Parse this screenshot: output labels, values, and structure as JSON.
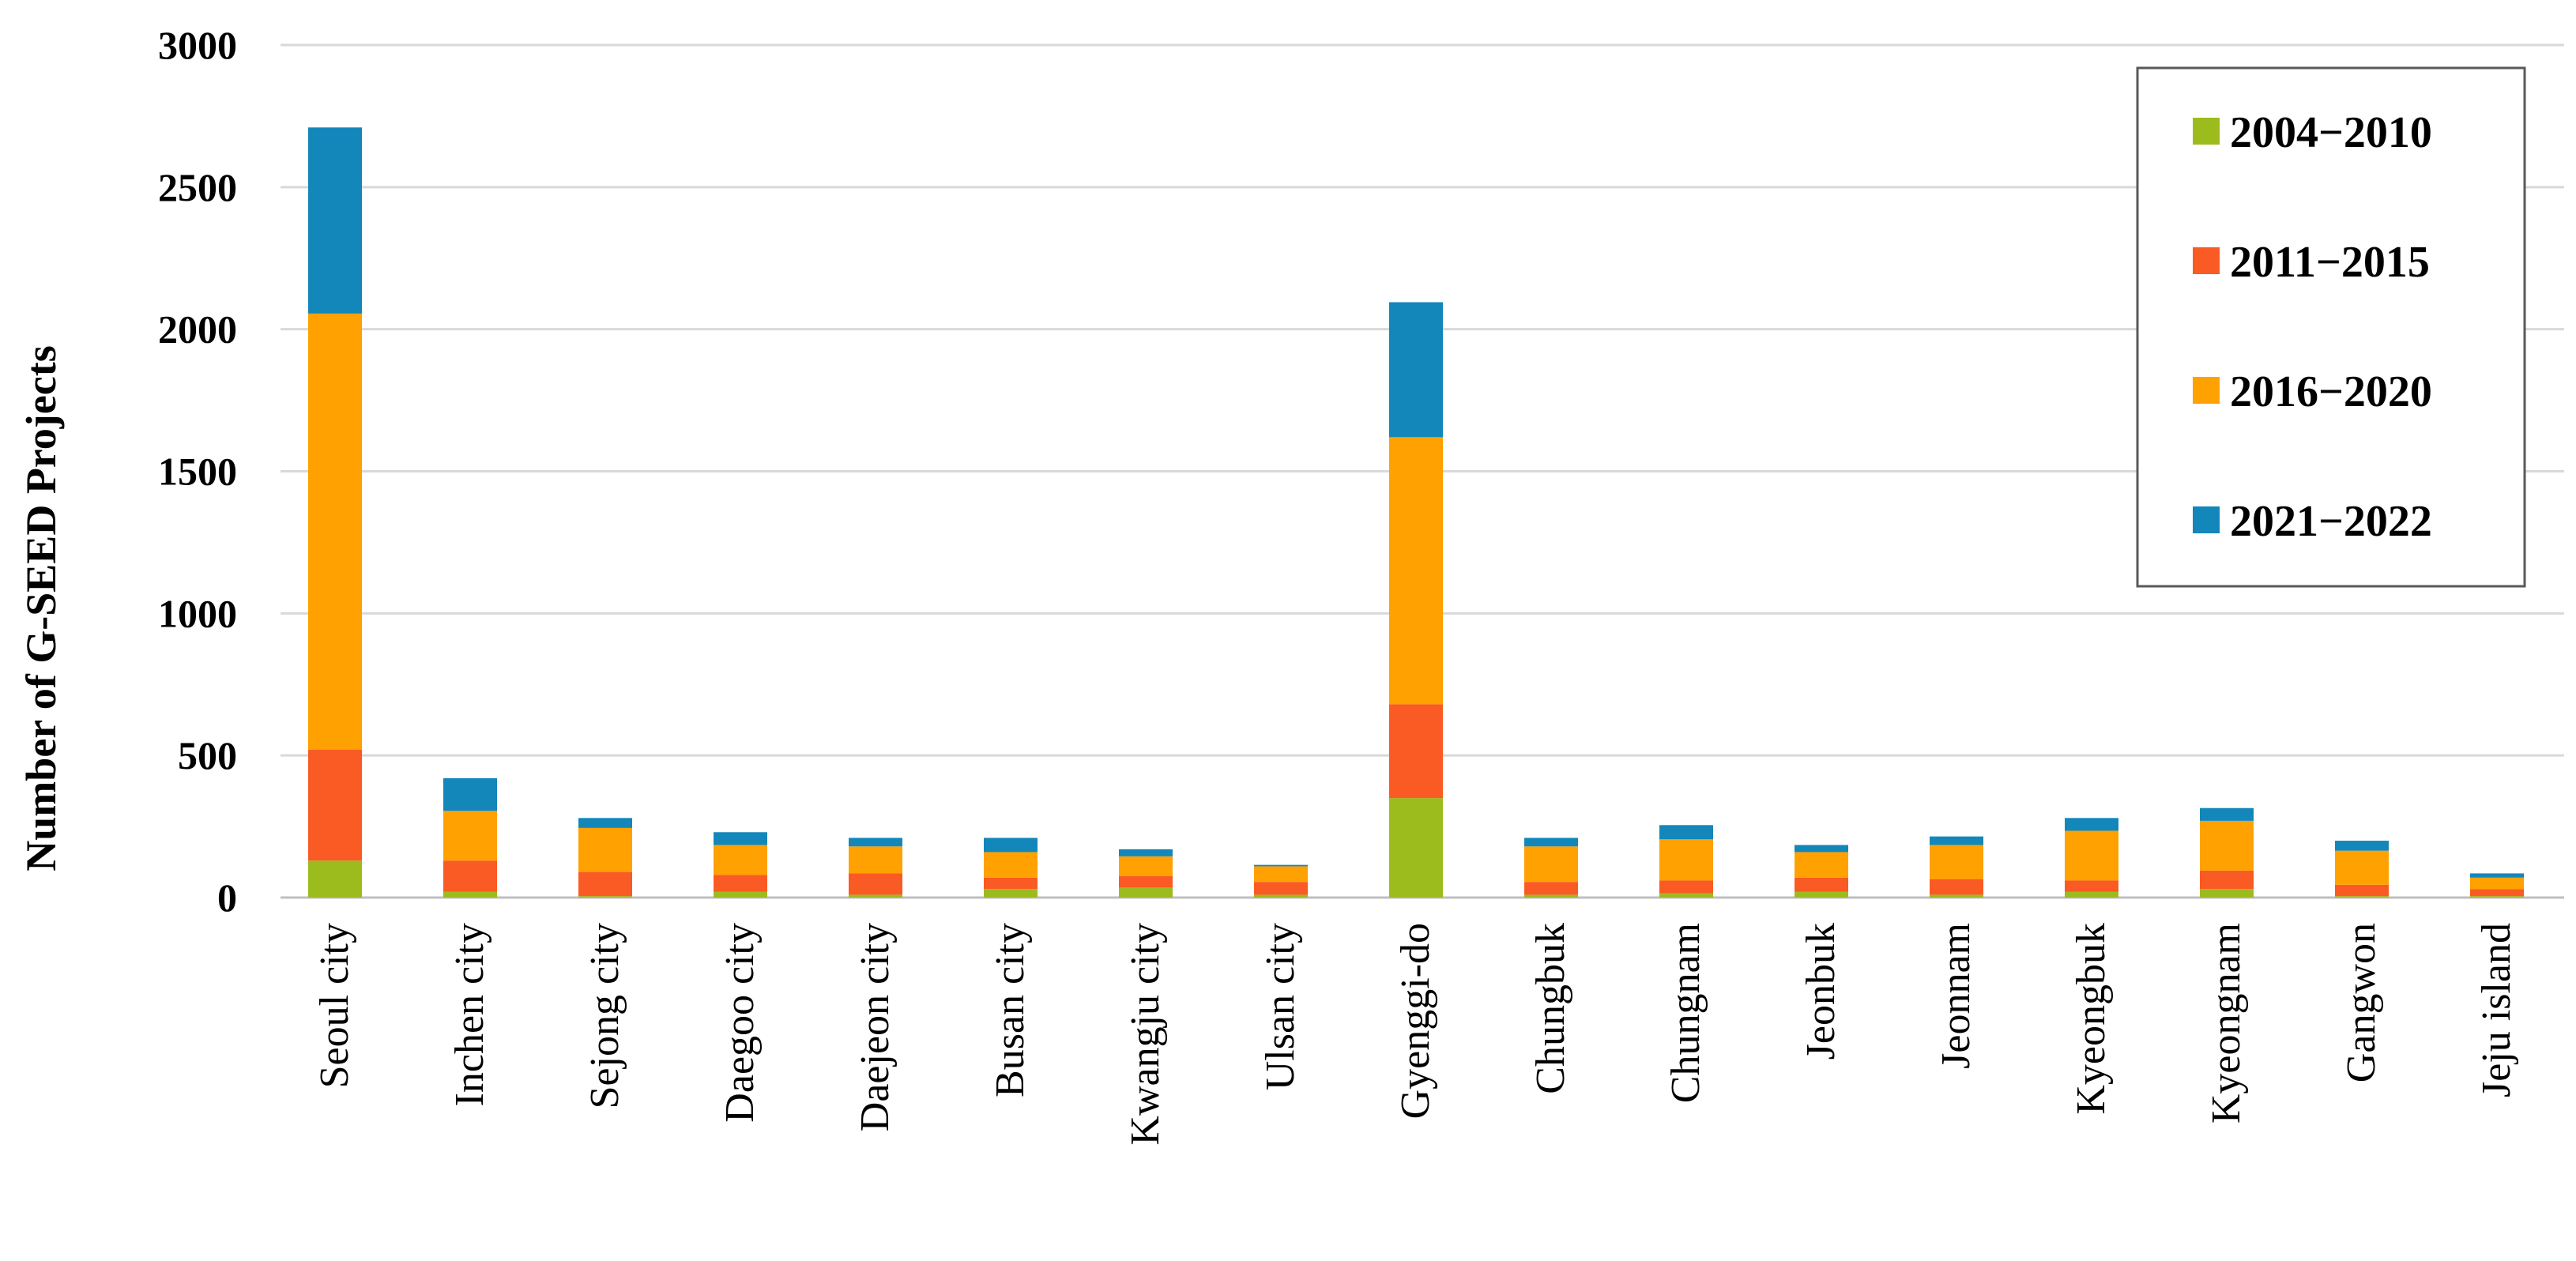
{
  "chart_data": {
    "type": "bar",
    "stacked": true,
    "ylabel": "Number of G-SEED Projects",
    "xlabel": "",
    "ylim": [
      0,
      3000
    ],
    "yticks": [
      0,
      500,
      1000,
      1500,
      2000,
      2500,
      3000
    ],
    "grid": true,
    "legend_position": "top-right",
    "categories": [
      "Seoul city",
      "Inchen city",
      "Sejong city",
      "Daegoo city",
      "Daejeon city",
      "Busan city",
      "Kwangju city",
      "Ulsan city",
      "Gyenggi-do",
      "Chungbuk",
      "Chungnam",
      "Jeonbuk",
      "Jeonnam",
      "Kyeongbuk",
      "Kyeongnam",
      "Gangwon",
      "Jeju island"
    ],
    "series": [
      {
        "name": "2004−2010",
        "color": "#9cbb1c",
        "values": [
          130,
          20,
          5,
          20,
          10,
          30,
          35,
          10,
          350,
          10,
          15,
          20,
          10,
          20,
          30,
          5,
          5
        ]
      },
      {
        "name": "2011−2015",
        "color": "#fa5a23",
        "values": [
          390,
          110,
          85,
          60,
          75,
          40,
          40,
          45,
          330,
          45,
          45,
          50,
          55,
          40,
          65,
          40,
          25
        ]
      },
      {
        "name": "2016−2020",
        "color": "#ffa100",
        "values": [
          1535,
          175,
          155,
          105,
          95,
          90,
          70,
          55,
          940,
          125,
          145,
          90,
          120,
          175,
          175,
          120,
          40
        ]
      },
      {
        "name": "2021−2022",
        "color": "#1387ba",
        "values": [
          655,
          115,
          35,
          45,
          30,
          50,
          25,
          5,
          475,
          30,
          50,
          25,
          30,
          45,
          45,
          35,
          15
        ]
      }
    ]
  }
}
